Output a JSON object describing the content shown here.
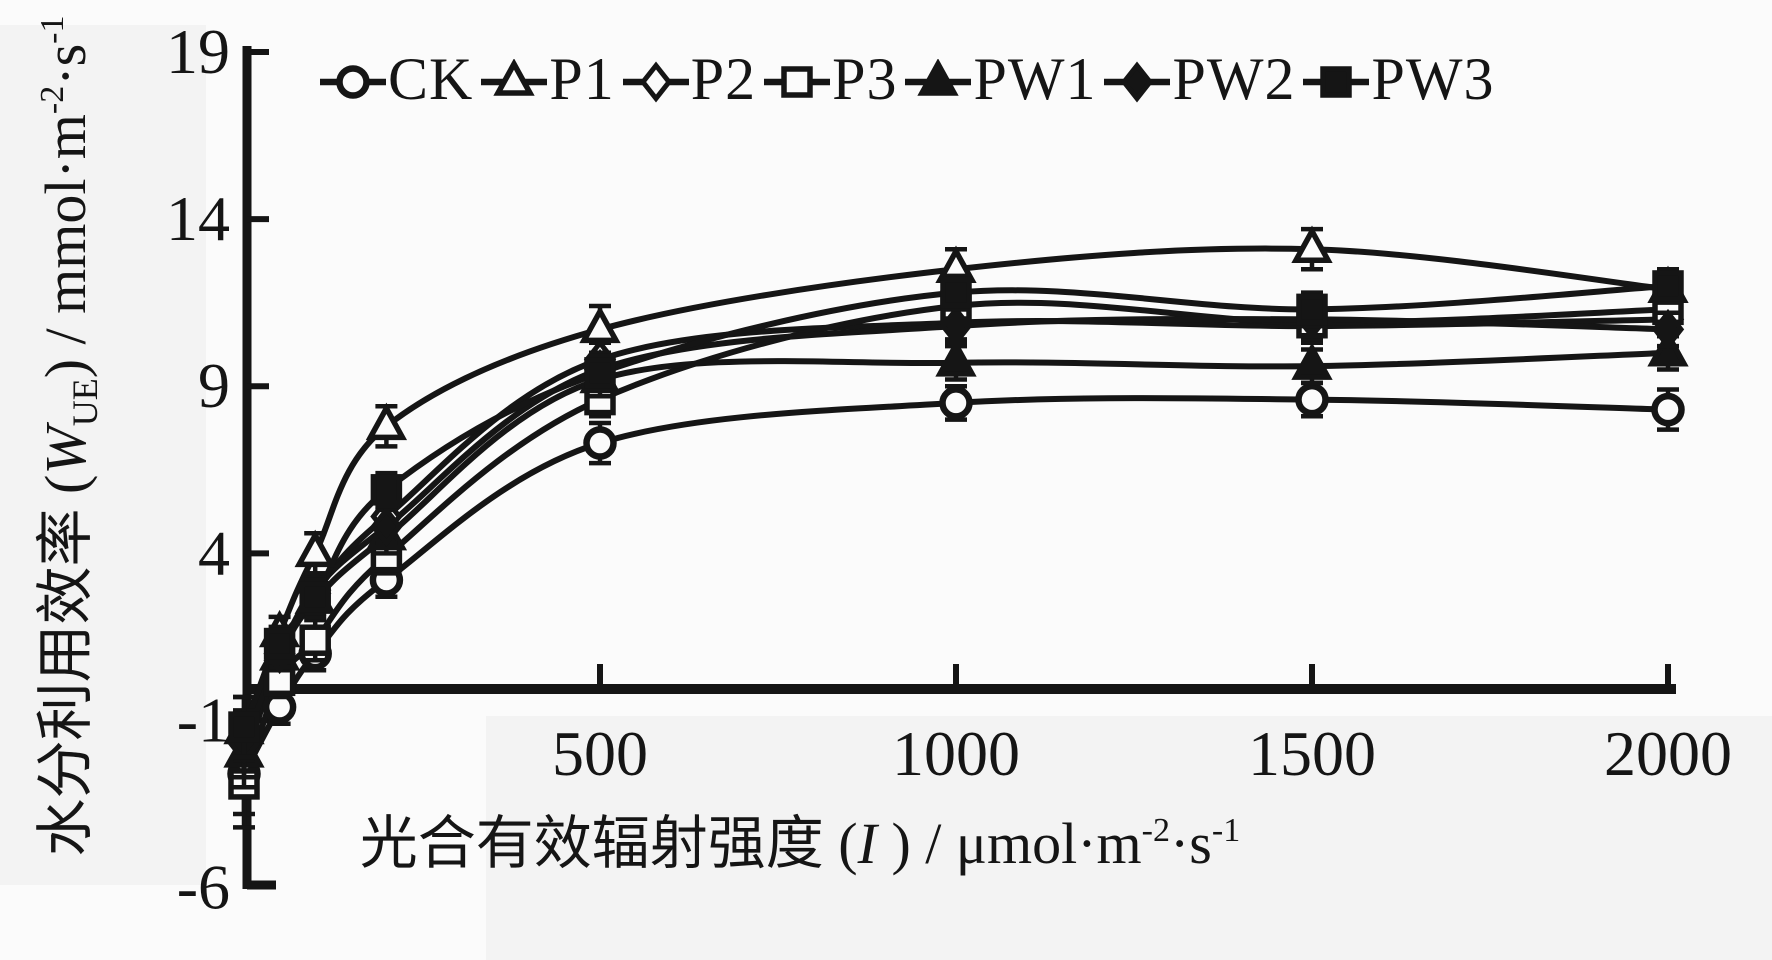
{
  "figure": {
    "background": "#fbfbfb",
    "ink": "#151515",
    "legend": {
      "position": "top",
      "items": [
        {
          "label": "CK",
          "marker": "circle-open"
        },
        {
          "label": "P1",
          "marker": "triangle-open"
        },
        {
          "label": "P2",
          "marker": "diamond-open"
        },
        {
          "label": "P3",
          "marker": "square-open"
        },
        {
          "label": "PW1",
          "marker": "triangle-filled"
        },
        {
          "label": "PW2",
          "marker": "diamond-filled"
        },
        {
          "label": "PW3",
          "marker": "square-filled"
        }
      ]
    },
    "y_label": {
      "title": "水分利用效率",
      "open": " (",
      "symbol": "W",
      "subscript": "UE",
      "close_slash": ") / ",
      "unit1": "mmol·m",
      "sup1": "-2",
      "unit2": "·s",
      "sup2": "-1"
    },
    "x_label": {
      "title": "光合有效辐射强度",
      "open": " (",
      "symbol": "I",
      "subscript": "",
      "close_slash": " ) / ",
      "unit1": "μmol·m",
      "sup1": "-2",
      "unit2": "·s",
      "sup2": "-1"
    }
  },
  "chart_data": {
    "type": "line",
    "title": "",
    "xlabel": "光合有效辐射强度 (I) / μmol·m-2·s-1",
    "ylabel": "水分利用效率 (WUE) / mmol·m-2·s-1",
    "xlim": [
      0,
      2000
    ],
    "ylim": [
      -6,
      19
    ],
    "xticks": [
      500,
      1000,
      1500,
      2000
    ],
    "yticks": [
      19,
      14,
      9,
      4,
      -1,
      -6
    ],
    "grid": false,
    "legend_position": "top",
    "x": [
      0,
      50,
      100,
      200,
      500,
      1000,
      1500,
      2000
    ],
    "series": [
      {
        "name": "CK",
        "marker": "circle-open",
        "values": [
          -2.6,
          -0.6,
          1.0,
          3.2,
          7.3,
          8.5,
          8.6,
          8.3
        ],
        "errors": [
          1.2,
          0.5,
          0.5,
          0.5,
          0.6,
          0.5,
          0.5,
          0.6
        ]
      },
      {
        "name": "P1",
        "marker": "triangle-open",
        "values": [
          -1.3,
          1.6,
          4.0,
          7.8,
          10.7,
          12.5,
          13.1,
          11.9
        ],
        "errors": [
          1.0,
          0.5,
          0.6,
          0.6,
          0.7,
          0.6,
          0.6,
          0.5
        ]
      },
      {
        "name": "P2",
        "marker": "diamond-open",
        "values": [
          -2.2,
          0.8,
          2.8,
          5.1,
          9.8,
          10.9,
          10.8,
          11.0
        ],
        "errors": [
          1.1,
          0.4,
          0.5,
          0.5,
          0.5,
          0.5,
          0.5,
          0.5
        ]
      },
      {
        "name": "P3",
        "marker": "square-open",
        "values": [
          -2.9,
          0.2,
          1.4,
          3.9,
          8.6,
          11.4,
          10.9,
          11.3
        ],
        "errors": [
          1.3,
          0.5,
          0.6,
          0.5,
          0.5,
          0.5,
          0.5,
          0.5
        ]
      },
      {
        "name": "PW1",
        "marker": "triangle-filled",
        "values": [
          -2.0,
          0.9,
          2.6,
          4.5,
          9.2,
          9.7,
          9.6,
          10.0
        ],
        "errors": [
          1.0,
          0.4,
          0.5,
          0.5,
          0.5,
          0.5,
          0.5,
          0.5
        ]
      },
      {
        "name": "PW2",
        "marker": "diamond-filled",
        "values": [
          -1.7,
          1.0,
          2.9,
          4.8,
          9.5,
          10.8,
          11.0,
          10.7
        ],
        "errors": [
          1.0,
          0.4,
          0.5,
          0.5,
          0.5,
          0.5,
          0.5,
          0.5
        ]
      },
      {
        "name": "PW3",
        "marker": "square-filled",
        "values": [
          -1.2,
          1.3,
          2.7,
          5.9,
          9.4,
          11.8,
          11.3,
          12.0
        ],
        "errors": [
          0.9,
          0.5,
          0.5,
          0.5,
          0.5,
          0.5,
          0.5,
          0.5
        ]
      }
    ]
  }
}
